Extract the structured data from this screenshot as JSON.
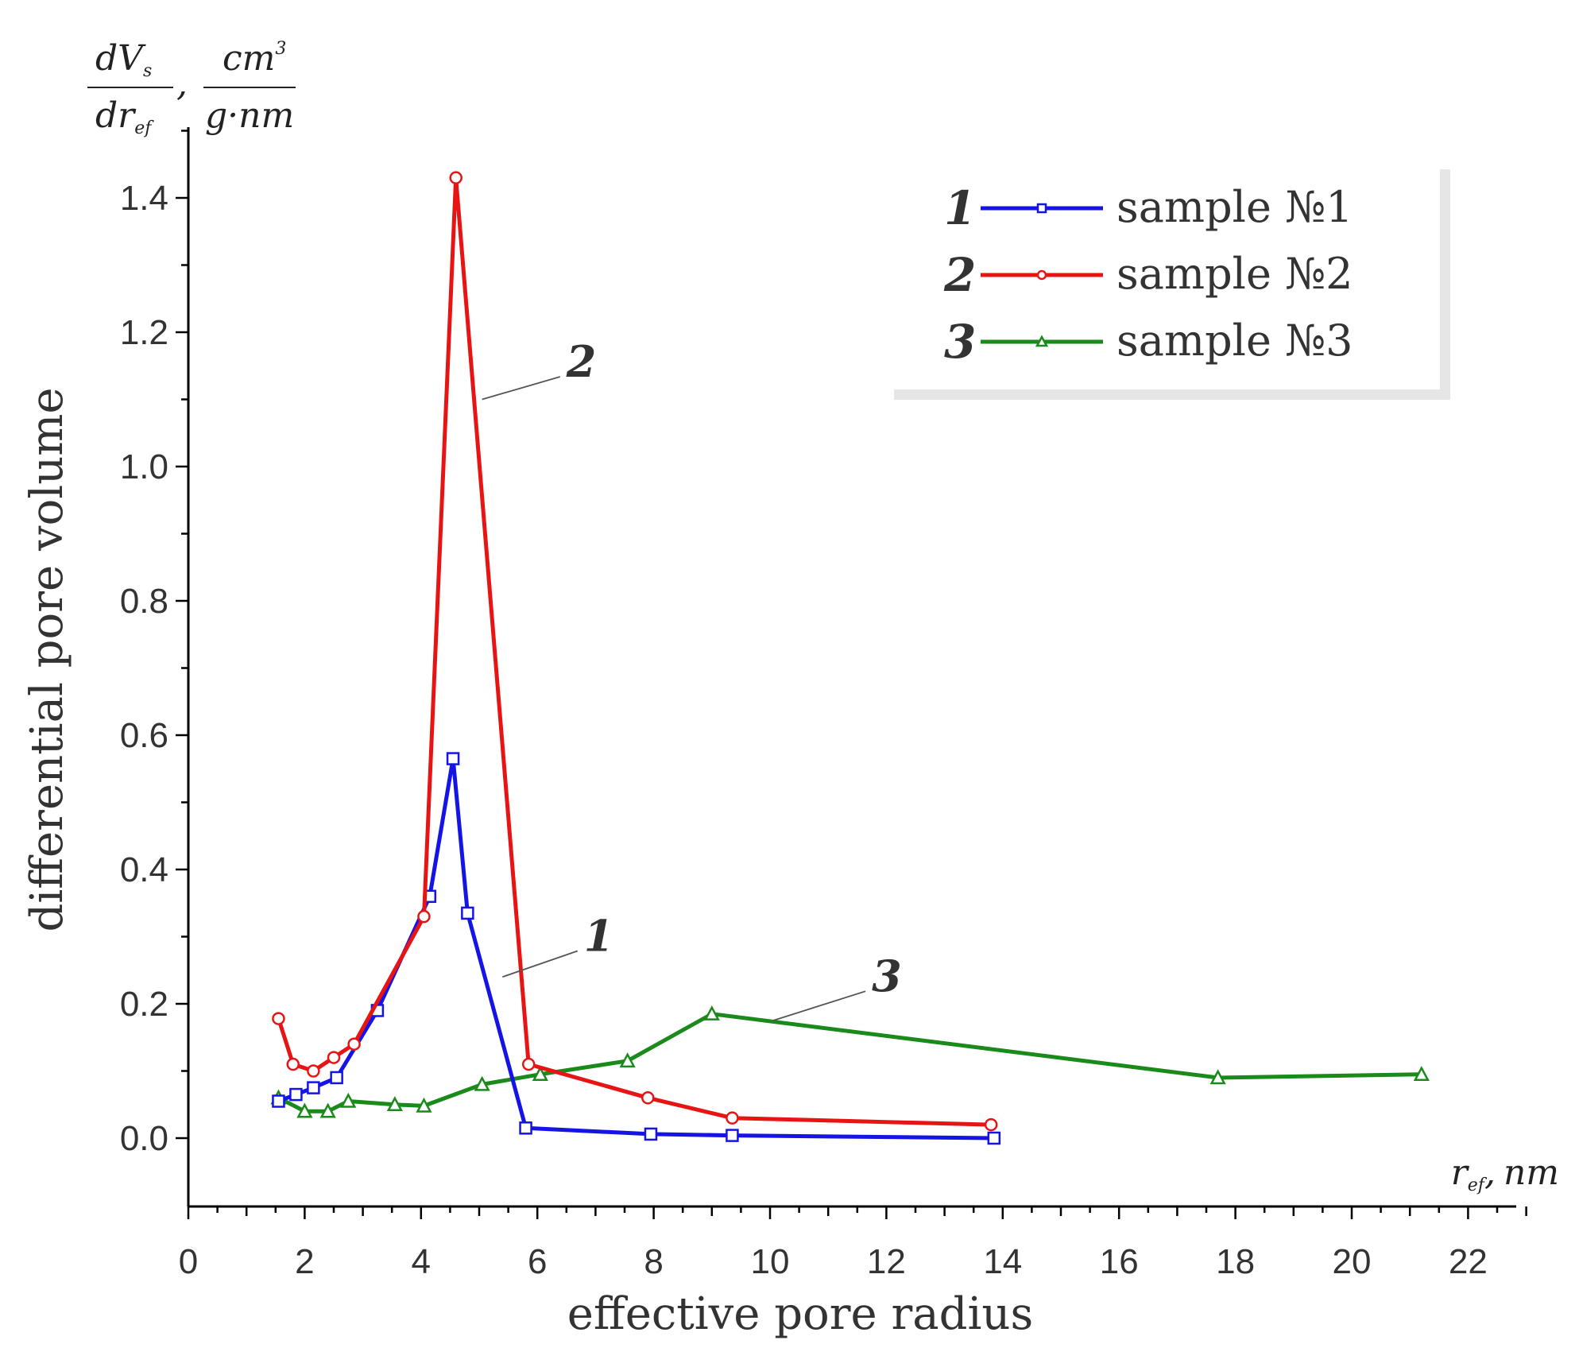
{
  "chart_data": {
    "type": "line",
    "title": "",
    "xlabel": "effective pore radius",
    "ylabel": "differential pore volume",
    "x_unit_label": "r_ef, nm",
    "x_unit_main": "r",
    "x_unit_sub": "ef",
    "x_unit_sep": ",",
    "x_unit_nm": "nm",
    "y_unit": {
      "num_left": "dV",
      "num_left_sub": "s",
      "den_left": "dr",
      "den_left_sub": "ef",
      "separator": ",",
      "num_right": "cm",
      "num_right_sup": "3",
      "den_right": "g·nm"
    },
    "xlim": [
      0,
      23
    ],
    "ylim": [
      -0.1,
      1.5
    ],
    "xticks": [
      0,
      2,
      4,
      6,
      8,
      10,
      12,
      14,
      16,
      18,
      20,
      22
    ],
    "xtick_labels": [
      "0",
      "2",
      "4",
      "6",
      "8",
      "10",
      "12",
      "14",
      "16",
      "18",
      "20",
      "22"
    ],
    "yticks": [
      0.0,
      0.2,
      0.4,
      0.6,
      0.8,
      1.0,
      1.2,
      1.4
    ],
    "ytick_labels": [
      "0.0",
      "0.2",
      "0.4",
      "0.6",
      "0.8",
      "1.0",
      "1.2",
      "1.4"
    ],
    "grid": false,
    "legend_position": "top-right",
    "series": [
      {
        "id": "1",
        "name": "sample №1",
        "legend_number": "1",
        "color": "#1414e6",
        "marker": "square",
        "x": [
          1.55,
          1.85,
          2.15,
          2.55,
          3.25,
          4.15,
          4.55,
          4.8,
          5.8,
          7.95,
          9.35,
          13.85
        ],
        "y": [
          0.055,
          0.065,
          0.075,
          0.09,
          0.19,
          0.36,
          0.565,
          0.335,
          0.015,
          0.006,
          0.004,
          0.0
        ]
      },
      {
        "id": "2",
        "name": "sample №2",
        "legend_number": "2",
        "color": "#e81414",
        "marker": "circle",
        "x": [
          1.55,
          1.8,
          2.15,
          2.5,
          2.85,
          4.05,
          4.6,
          5.85,
          7.9,
          9.35,
          13.8
        ],
        "y": [
          0.178,
          0.11,
          0.1,
          0.12,
          0.14,
          0.33,
          1.43,
          0.11,
          0.06,
          0.03,
          0.02
        ]
      },
      {
        "id": "3",
        "name": "sample №3",
        "legend_number": "3",
        "color": "#1a8a1a",
        "marker": "triangle",
        "x": [
          1.55,
          2.0,
          2.4,
          2.75,
          3.55,
          4.05,
          5.05,
          6.05,
          7.55,
          9.0,
          17.7,
          21.2
        ],
        "y": [
          0.06,
          0.04,
          0.04,
          0.055,
          0.05,
          0.048,
          0.08,
          0.095,
          0.115,
          0.185,
          0.09,
          0.095
        ]
      }
    ],
    "annotations": [
      {
        "text": "2",
        "series": "2",
        "point_x": 5.05,
        "point_y": 1.1,
        "label_x": 6.5,
        "label_y": 1.155
      },
      {
        "text": "1",
        "series": "1",
        "point_x": 5.4,
        "point_y": 0.24,
        "label_x": 6.8,
        "label_y": 0.3
      },
      {
        "text": "3",
        "series": "3",
        "point_x": 10.05,
        "point_y": 0.175,
        "label_x": 11.75,
        "label_y": 0.24
      }
    ]
  }
}
